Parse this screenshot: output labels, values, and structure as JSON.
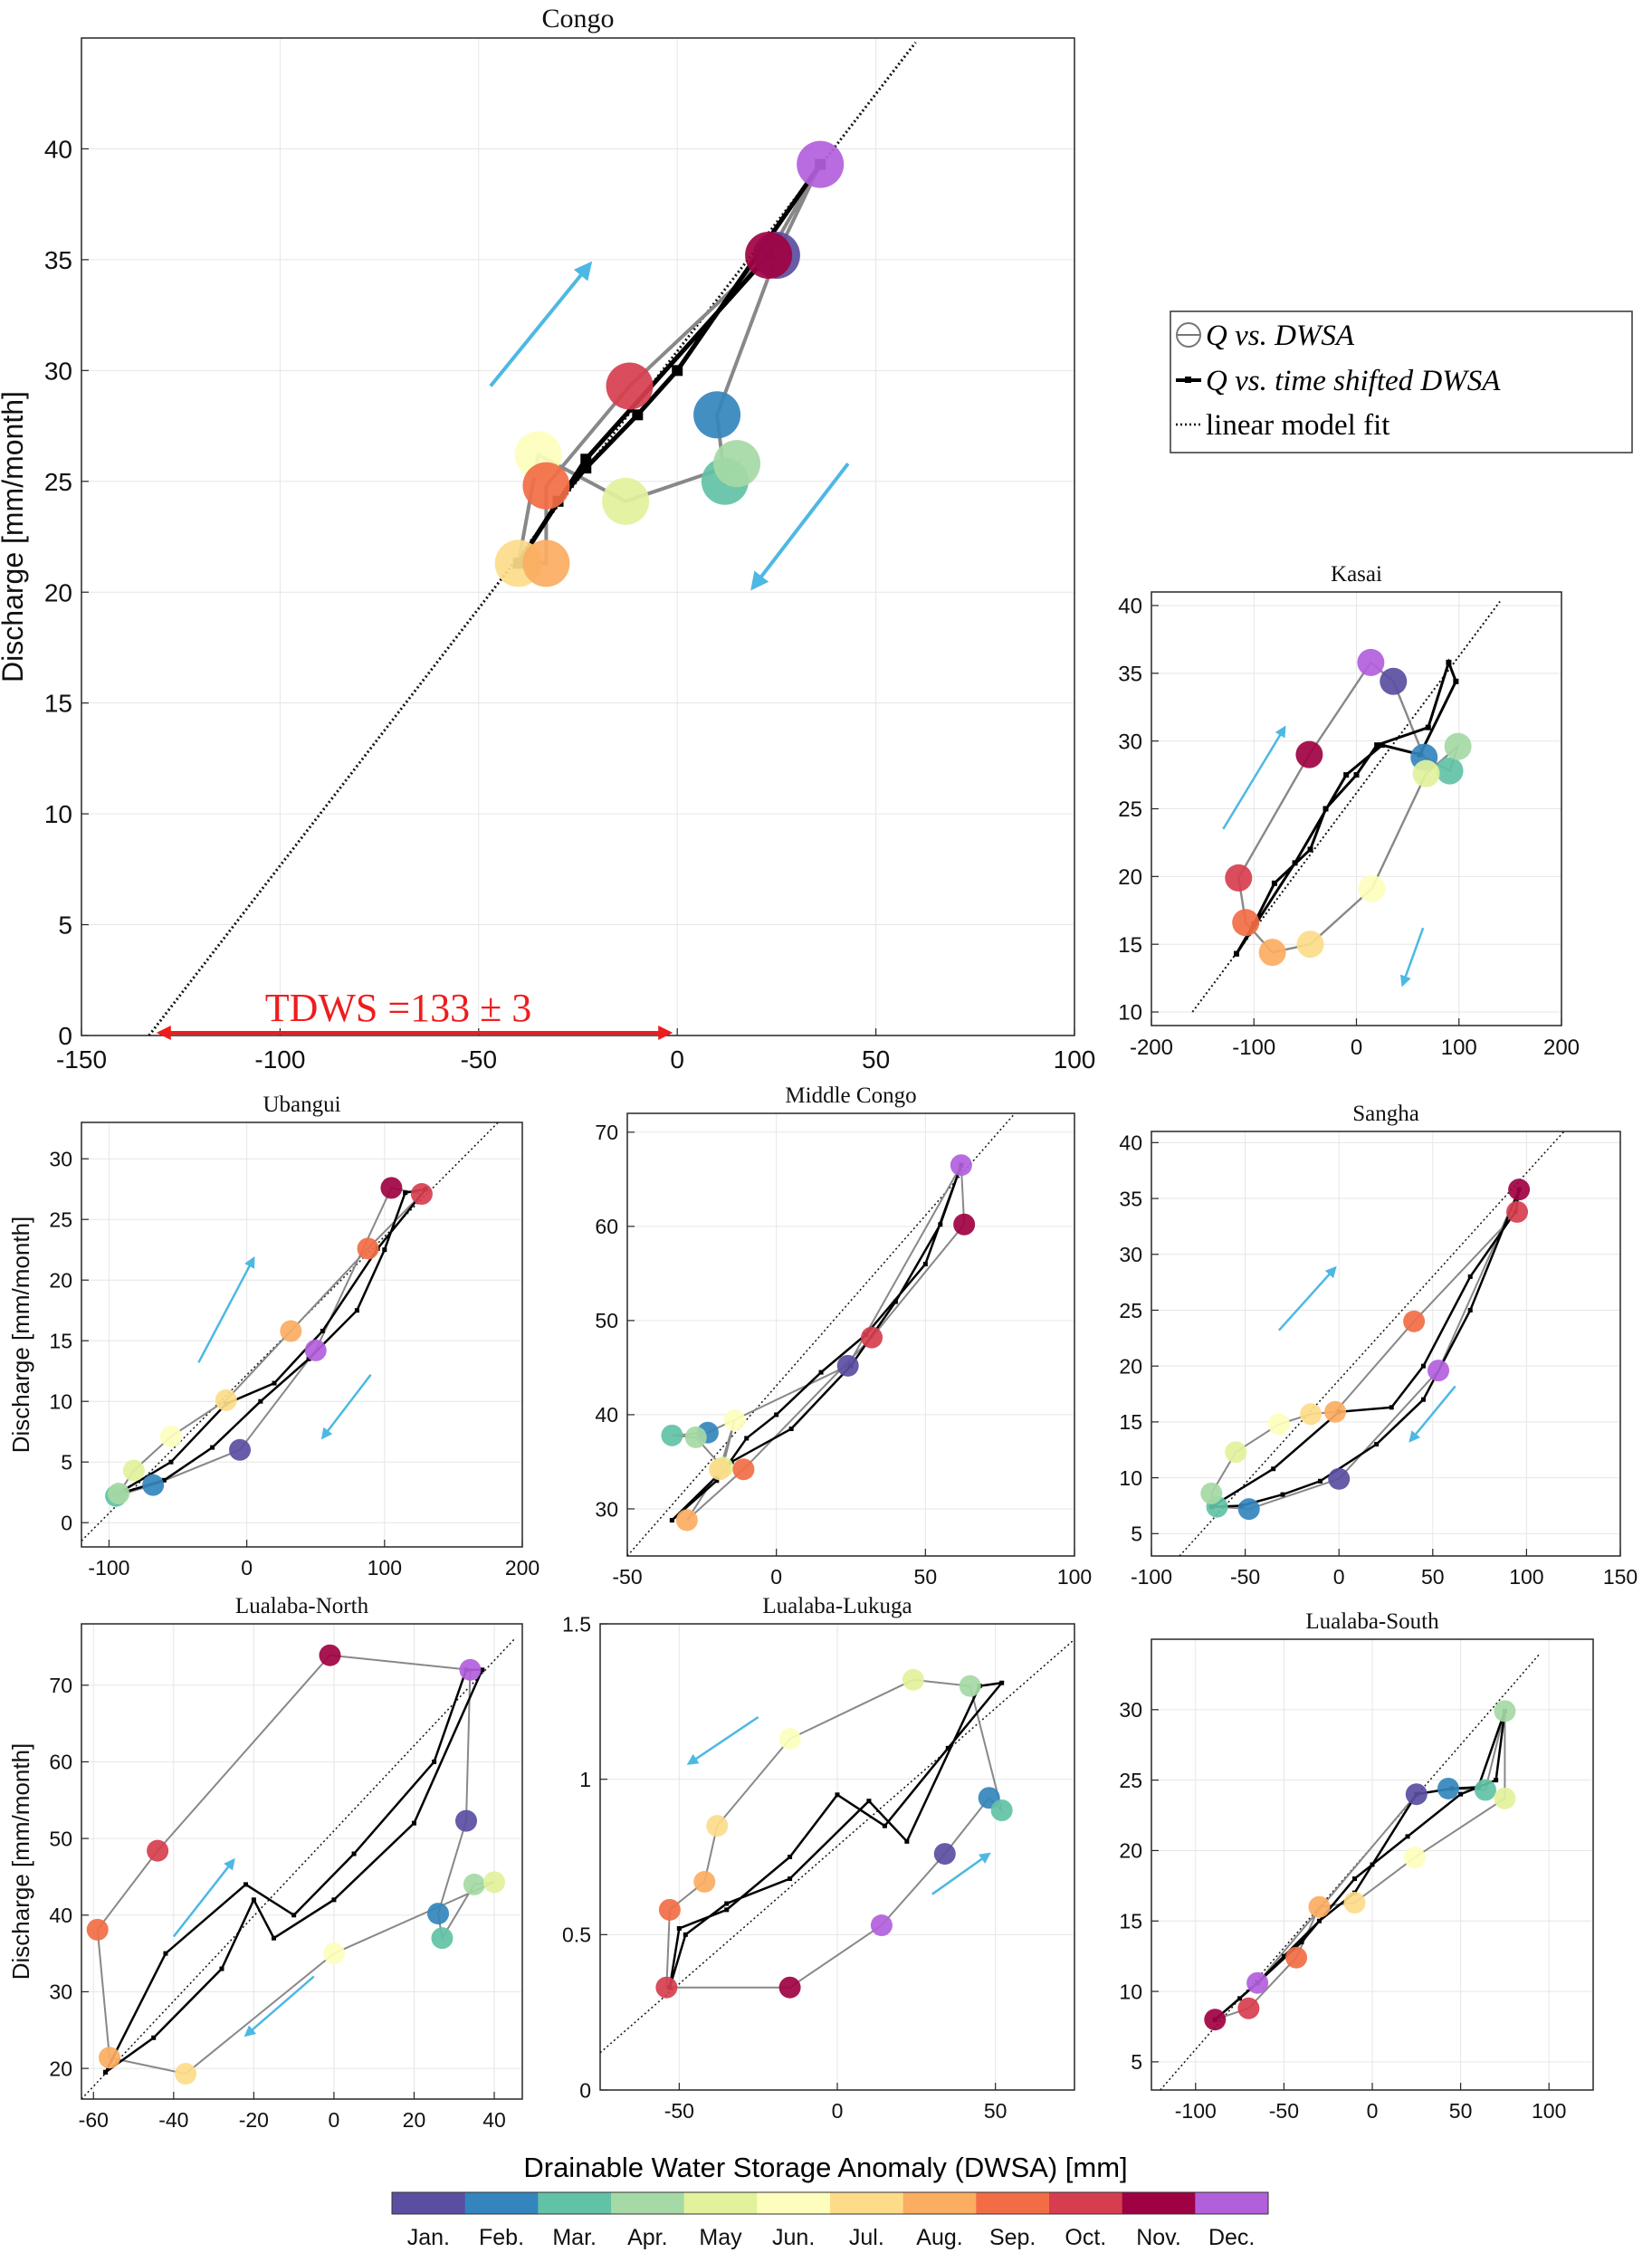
{
  "colors": {
    "months": [
      "#5a4ea1",
      "#3485bd",
      "#62c2a6",
      "#a5d9a5",
      "#e1f29b",
      "#fdfebd",
      "#fcdc89",
      "#fbad61",
      "#f26d45",
      "#d63e4f",
      "#9f0242",
      "#b25fdc"
    ],
    "arrow": "#4db8e3",
    "tdws": "#ee1d1d"
  },
  "legend": {
    "items": [
      {
        "label": "Q vs. DWSA",
        "symbol": "open-circle"
      },
      {
        "label": "Q vs. time shifted DWSA",
        "symbol": "black-line-square"
      },
      {
        "label": "linear model fit",
        "symbol": "dotted-line"
      }
    ]
  },
  "colorbar": {
    "title": "Drainable Water Storage Anomaly (DWSA) [mm]",
    "labels": [
      "Jan.",
      "Feb.",
      "Mar.",
      "Apr.",
      "May",
      "Jun.",
      "Jul.",
      "Aug.",
      "Sep.",
      "Oct.",
      "Nov.",
      "Dec."
    ]
  },
  "annotation": {
    "tdws": "TDWS =133 ± 3"
  },
  "chart_data": [
    {
      "id": "congo",
      "title": "Congo",
      "type": "scatter",
      "ylabel": "Discharge [mm/month]",
      "xlim": [
        -150,
        100
      ],
      "ylim": [
        0,
        45
      ],
      "xticks": [
        -150,
        -100,
        -50,
        0,
        50,
        100
      ],
      "yticks": [
        0,
        5,
        10,
        15,
        20,
        25,
        30,
        35,
        40
      ],
      "xticklabels": [
        "-150",
        "-100",
        "-50",
        "0",
        "50",
        "100"
      ],
      "yticklabels": [
        "0",
        "5",
        "10",
        "15",
        "20",
        "25",
        "30",
        "35",
        "40"
      ],
      "fit": [
        [
          -133,
          0
        ],
        [
          60,
          44.8
        ]
      ],
      "months_x": [
        25,
        10,
        12,
        15,
        -13,
        -35,
        -40,
        -33,
        -33,
        -12,
        23,
        36
      ],
      "months_y": [
        35.2,
        28,
        25,
        25.8,
        24.1,
        26.2,
        21.3,
        21.3,
        24.8,
        29.3,
        35.2,
        39.3
      ],
      "shifted_x": [
        23,
        -23,
        -40,
        -30,
        -23,
        -10,
        0,
        36
      ],
      "shifted_y": [
        35.2,
        26,
        21.3,
        24.1,
        25.6,
        28,
        30,
        39.3
      ],
      "arrows": [
        [
          -47,
          29.3,
          -22,
          34.8
        ],
        [
          43,
          25.8,
          19,
          20.2
        ]
      ]
    },
    {
      "id": "kasai",
      "title": "Kasai",
      "type": "scatter",
      "ylabel": "",
      "xlim": [
        -200,
        200
      ],
      "ylim": [
        9,
        41
      ],
      "xticks": [
        -200,
        -100,
        0,
        100,
        200
      ],
      "yticks": [
        10,
        15,
        20,
        25,
        30,
        35,
        40
      ],
      "xticklabels": [
        "-200",
        "-100",
        "0",
        "100",
        "200"
      ],
      "yticklabels": [
        "10",
        "15",
        "20",
        "25",
        "30",
        "35",
        "40"
      ],
      "fit": [
        [
          -160,
          10
        ],
        [
          140,
          40.3
        ]
      ],
      "months_x": [
        36,
        66,
        91,
        99,
        68,
        15,
        -45,
        -82,
        -108,
        -115,
        -46,
        14
      ],
      "months_y": [
        34.4,
        28.8,
        27.8,
        29.6,
        27.6,
        19.1,
        15,
        14.4,
        16.6,
        19.9,
        29,
        35.8
      ],
      "shifted_x": [
        -117,
        -100,
        -80,
        -45,
        -30,
        0,
        20,
        70,
        90,
        97,
        62,
        25,
        -10,
        -60,
        -117
      ],
      "shifted_y": [
        14.3,
        16.5,
        19.5,
        22,
        25,
        27.5,
        29.7,
        31,
        35.8,
        34.4,
        29,
        29.7,
        27.5,
        21,
        14.3
      ],
      "arrows": [
        [
          -130,
          23.5,
          -70,
          31
        ],
        [
          65,
          16.2,
          45,
          12
        ]
      ]
    },
    {
      "id": "ubangui",
      "title": "Ubangui",
      "type": "scatter",
      "ylabel": "Discharge [mm/month]",
      "xlim": [
        -120,
        200
      ],
      "ylim": [
        -2,
        33
      ],
      "xticks": [
        -100,
        0,
        100,
        200
      ],
      "yticks": [
        0,
        5,
        10,
        15,
        20,
        25,
        30
      ],
      "xticklabels": [
        "-100",
        "0",
        "100",
        "200"
      ],
      "yticklabels": [
        "0",
        "5",
        "10",
        "15",
        "20",
        "25",
        "30"
      ],
      "fit": [
        [
          -120,
          -1.5
        ],
        [
          200,
          35
        ]
      ],
      "months_x": [
        -5,
        -68,
        -95,
        -93,
        -82,
        -55,
        -15,
        32,
        88,
        127,
        105,
        50
      ],
      "months_y": [
        6,
        3.1,
        2.2,
        2.4,
        4.3,
        7.1,
        10.1,
        15.8,
        22.6,
        27.1,
        27.6,
        14.2
      ],
      "shifted_x": [
        -95,
        -60,
        -25,
        10,
        45,
        80,
        100,
        115,
        130,
        95,
        55,
        20,
        -15,
        -55,
        -95
      ],
      "shifted_y": [
        2.3,
        3.5,
        6.2,
        10,
        13.5,
        17.5,
        22.5,
        27.2,
        27.5,
        22.6,
        15.8,
        11.5,
        9.8,
        5,
        2.3
      ],
      "arrows": [
        [
          -35,
          13.2,
          5,
          21.8
        ],
        [
          90,
          12.2,
          55,
          7
        ]
      ]
    },
    {
      "id": "middle",
      "title": "Middle Congo",
      "type": "scatter",
      "ylabel": "",
      "xlim": [
        -50,
        100
      ],
      "ylim": [
        25,
        72
      ],
      "xticks": [
        -50,
        0,
        50,
        100
      ],
      "yticks": [
        30,
        40,
        50,
        60,
        70
      ],
      "xticklabels": [
        "-50",
        "0",
        "50",
        "100"
      ],
      "yticklabels": [
        "30",
        "40",
        "50",
        "60",
        "70"
      ],
      "fit": [
        [
          -50,
          25
        ],
        [
          80,
          72
        ]
      ],
      "months_x": [
        24,
        -23,
        -35,
        -27,
        -18,
        -14,
        -19,
        -30,
        -11,
        32,
        63,
        62
      ],
      "months_y": [
        45.2,
        38.1,
        37.8,
        37.6,
        34.4,
        39.4,
        34.2,
        28.8,
        34.2,
        48.2,
        60.2,
        66.5
      ],
      "shifted_x": [
        -35,
        -20,
        -10,
        0,
        15,
        30,
        50,
        62,
        55,
        40,
        25,
        5,
        -15,
        -35
      ],
      "shifted_y": [
        28.8,
        33,
        37.5,
        40,
        44.5,
        48.5,
        56,
        66.5,
        60.2,
        52,
        45.2,
        38.5,
        35,
        28.8
      ],
      "arrows": []
    },
    {
      "id": "sangha",
      "title": "Sangha",
      "type": "scatter",
      "ylabel": "",
      "xlim": [
        -100,
        150
      ],
      "ylim": [
        3,
        41
      ],
      "xticks": [
        -100,
        -50,
        0,
        50,
        100,
        150
      ],
      "yticks": [
        5,
        10,
        15,
        20,
        25,
        30,
        35,
        40
      ],
      "xticklabels": [
        "-100",
        "-50",
        "0",
        "50",
        "100",
        "150"
      ],
      "yticklabels": [
        "5",
        "10",
        "15",
        "20",
        "25",
        "30",
        "35",
        "40"
      ],
      "fit": [
        [
          -85,
          3
        ],
        [
          120,
          41
        ]
      ],
      "months_x": [
        0,
        -48,
        -65,
        -68,
        -55,
        -32,
        -15,
        -2,
        40,
        95,
        96,
        53
      ],
      "months_y": [
        9.9,
        7.2,
        7.4,
        8.6,
        12.3,
        14.8,
        15.7,
        15.9,
        24,
        33.8,
        35.8,
        19.6
      ],
      "shifted_x": [
        -68,
        -52,
        -30,
        -10,
        20,
        45,
        70,
        96,
        94,
        70,
        45,
        28,
        0,
        -35,
        -68
      ],
      "shifted_y": [
        7.4,
        7.5,
        8.5,
        9.7,
        13,
        17,
        25,
        35.8,
        33.8,
        28,
        20,
        16.3,
        15.9,
        10.8,
        7.4
      ],
      "arrows": [
        [
          -32,
          23.2,
          -2,
          28.8
        ],
        [
          62,
          18.2,
          38,
          13.3
        ]
      ]
    },
    {
      "id": "lnorth",
      "title": "Lualaba-North",
      "type": "scatter",
      "ylabel": "Discharge [mm/month]",
      "xlim": [
        -63,
        47
      ],
      "ylim": [
        16,
        78
      ],
      "xticks": [
        -60,
        -40,
        -20,
        0,
        20,
        40
      ],
      "yticks": [
        20,
        30,
        40,
        50,
        60,
        70
      ],
      "xticklabels": [
        "-60",
        "-40",
        "-20",
        "0",
        "20",
        "40"
      ],
      "yticklabels": [
        "20",
        "30",
        "40",
        "50",
        "60",
        "70"
      ],
      "fit": [
        [
          -63,
          16
        ],
        [
          45,
          76
        ]
      ],
      "months_x": [
        33,
        26,
        27,
        35,
        40,
        0,
        -37,
        -56,
        -59,
        -44,
        -1,
        34
      ],
      "months_y": [
        52.3,
        40.2,
        37,
        44,
        44.3,
        35,
        19.3,
        21.4,
        38.1,
        48.4,
        73.9,
        72
      ],
      "shifted_x": [
        -57,
        -45,
        -28,
        -20,
        -15,
        0,
        20,
        37,
        33,
        25,
        5,
        -10,
        -22,
        -42,
        -57
      ],
      "shifted_y": [
        19.5,
        24,
        33,
        42,
        37,
        42,
        52,
        72,
        72,
        60,
        48,
        40,
        44,
        35,
        19.5
      ],
      "arrows": [
        [
          -40,
          37.2,
          -25,
          47.2
        ],
        [
          -5,
          32,
          -22,
          24.3
        ]
      ]
    },
    {
      "id": "lluk",
      "title": "Lualaba-Lukuga",
      "type": "scatter",
      "ylabel": "",
      "xlim": [
        -75,
        75
      ],
      "ylim": [
        0,
        1.5
      ],
      "xticks": [
        -50,
        0,
        50
      ],
      "yticks": [
        0,
        0.5,
        1,
        1.5
      ],
      "xticklabels": [
        "-50",
        "0",
        "50"
      ],
      "yticklabels": [
        "0",
        "0.5",
        "1",
        "1.5"
      ],
      "fit": [
        [
          -75,
          0.12
        ],
        [
          75,
          1.45
        ]
      ],
      "months_x": [
        34,
        48,
        52,
        42,
        24,
        -15,
        -38,
        -42,
        -53,
        -54,
        -15,
        14
      ],
      "months_y": [
        0.76,
        0.94,
        0.9,
        1.3,
        1.32,
        1.13,
        0.85,
        0.67,
        0.58,
        0.33,
        0.33,
        0.53
      ],
      "shifted_x": [
        -53,
        -48,
        -35,
        -15,
        10,
        22,
        45,
        52,
        35,
        15,
        0,
        -15,
        -35,
        -50,
        -53
      ],
      "shifted_y": [
        0.33,
        0.5,
        0.6,
        0.68,
        0.93,
        0.8,
        1.3,
        1.31,
        1.1,
        0.85,
        0.95,
        0.75,
        0.58,
        0.52,
        0.33
      ],
      "arrows": [
        [
          -25,
          1.2,
          -47,
          1.05
        ],
        [
          30,
          0.63,
          48,
          0.76
        ]
      ]
    },
    {
      "id": "lsouth",
      "title": "Lualaba-South",
      "type": "scatter",
      "ylabel": "",
      "xlim": [
        -125,
        125
      ],
      "ylim": [
        3,
        35
      ],
      "xticks": [
        -100,
        -50,
        0,
        50,
        100
      ],
      "yticks": [
        5,
        10,
        15,
        20,
        25,
        30
      ],
      "xticklabels": [
        "-100",
        "-50",
        "0",
        "50",
        "100"
      ],
      "yticklabels": [
        "5",
        "10",
        "15",
        "20",
        "25",
        "30"
      ],
      "fit": [
        [
          -120,
          3
        ],
        [
          95,
          34
        ]
      ],
      "months_x": [
        25,
        43,
        64,
        75,
        75,
        24,
        -10,
        -30,
        -43,
        -70,
        -89,
        -65
      ],
      "months_y": [
        24,
        24.4,
        24.3,
        29.9,
        23.7,
        19.5,
        16.3,
        16,
        12.4,
        8.8,
        8,
        10.6
      ],
      "shifted_x": [
        -89,
        -75,
        -65,
        -50,
        -30,
        -10,
        0,
        25,
        45,
        60,
        75,
        70,
        50,
        20,
        -10,
        -40,
        -65,
        -89
      ],
      "shifted_y": [
        8,
        9.5,
        10.6,
        12.5,
        15,
        17,
        19,
        24,
        24.4,
        24.5,
        29.9,
        25,
        24,
        21,
        18,
        13.5,
        10.6,
        8
      ],
      "arrows": []
    }
  ]
}
